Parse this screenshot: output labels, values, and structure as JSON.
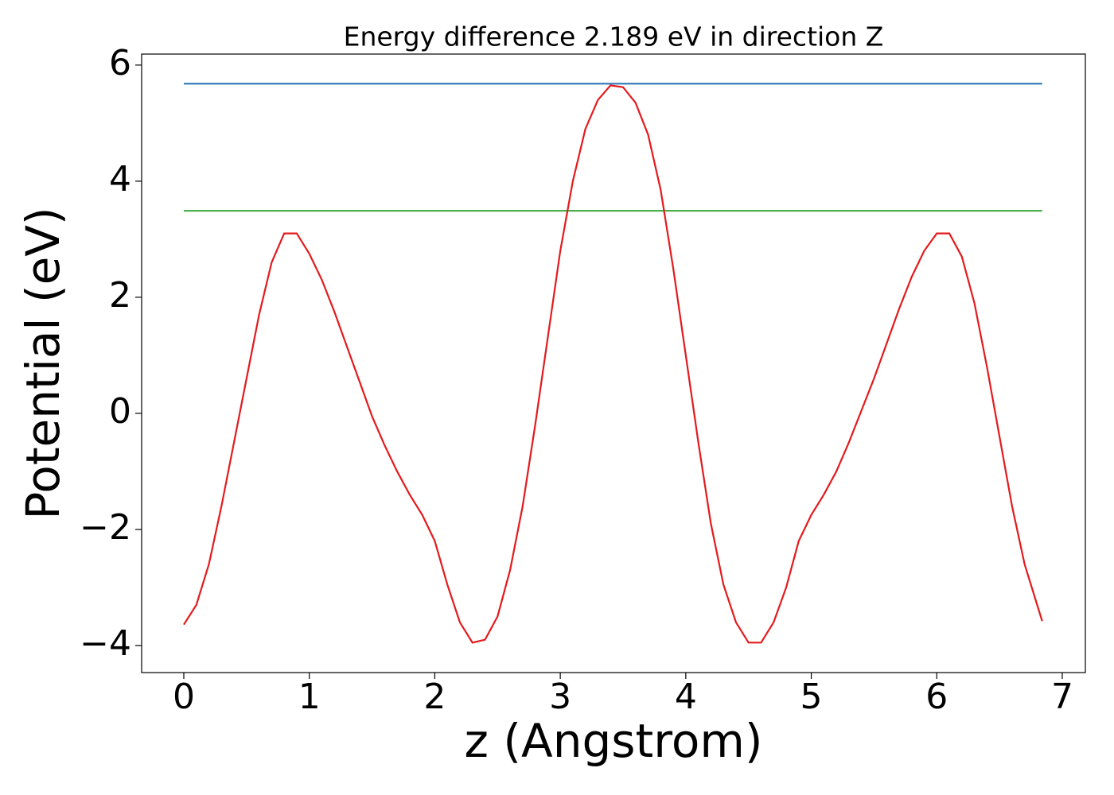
{
  "chart_data": {
    "type": "line",
    "title": "Energy difference 2.189 eV in direction Z",
    "xlabel": "z (Angstrom)",
    "ylabel": "Potential (eV)",
    "xlim": [
      -0.336,
      7.184
    ],
    "ylim": [
      -4.466,
      6.19
    ],
    "xticks": [
      0,
      1,
      2,
      3,
      4,
      5,
      6,
      7
    ],
    "yticks": [
      {
        "value": -4,
        "label": "−4"
      },
      {
        "value": -2,
        "label": "−2"
      },
      0,
      2,
      4,
      6
    ],
    "grid": false,
    "series": [
      {
        "color": "#e41a1c",
        "x": [
          0,
          0.1,
          0.2,
          0.3,
          0.4,
          0.5,
          0.6,
          0.7,
          0.8,
          0.9,
          1.0,
          1.1,
          1.2,
          1.3,
          1.4,
          1.5,
          1.6,
          1.7,
          1.8,
          1.9,
          2.0,
          2.1,
          2.2,
          2.3,
          2.4,
          2.5,
          2.6,
          2.7,
          2.8,
          2.9,
          3.0,
          3.1,
          3.2,
          3.3,
          3.4,
          3.5,
          3.6,
          3.7,
          3.8,
          3.9,
          4.0,
          4.1,
          4.2,
          4.3,
          4.4,
          4.5,
          4.6,
          4.7,
          4.8,
          4.9,
          5.0,
          5.1,
          5.2,
          5.3,
          5.4,
          5.5,
          5.6,
          5.7,
          5.8,
          5.9,
          6.0,
          6.1,
          6.2,
          6.3,
          6.4,
          6.5,
          6.6,
          6.7,
          6.8,
          6.84
        ],
        "values": [
          -3.64,
          -3.3,
          -2.6,
          -1.6,
          -0.5,
          0.6,
          1.7,
          2.6,
          3.1,
          3.1,
          2.75,
          2.3,
          1.75,
          1.15,
          0.55,
          -0.05,
          -0.55,
          -1.0,
          -1.4,
          -1.75,
          -2.2,
          -2.95,
          -3.6,
          -3.95,
          -3.9,
          -3.5,
          -2.7,
          -1.6,
          -0.2,
          1.3,
          2.8,
          4.0,
          4.9,
          5.4,
          5.65,
          5.62,
          5.35,
          4.8,
          3.85,
          2.5,
          1.0,
          -0.5,
          -1.9,
          -2.95,
          -3.6,
          -3.95,
          -3.95,
          -3.6,
          -3.0,
          -2.2,
          -1.75,
          -1.4,
          -1.0,
          -0.5,
          0.05,
          0.6,
          1.2,
          1.8,
          2.35,
          2.8,
          3.1,
          3.1,
          2.7,
          1.9,
          0.8,
          -0.4,
          -1.6,
          -2.6,
          -3.3,
          -3.58
        ]
      },
      {
        "color": "#377eb8",
        "x": [
          0,
          6.84
        ],
        "values": [
          5.68,
          5.68
        ]
      },
      {
        "color": "#4daf4a",
        "x": [
          0,
          6.84
        ],
        "values": [
          3.49,
          3.49
        ]
      }
    ]
  }
}
